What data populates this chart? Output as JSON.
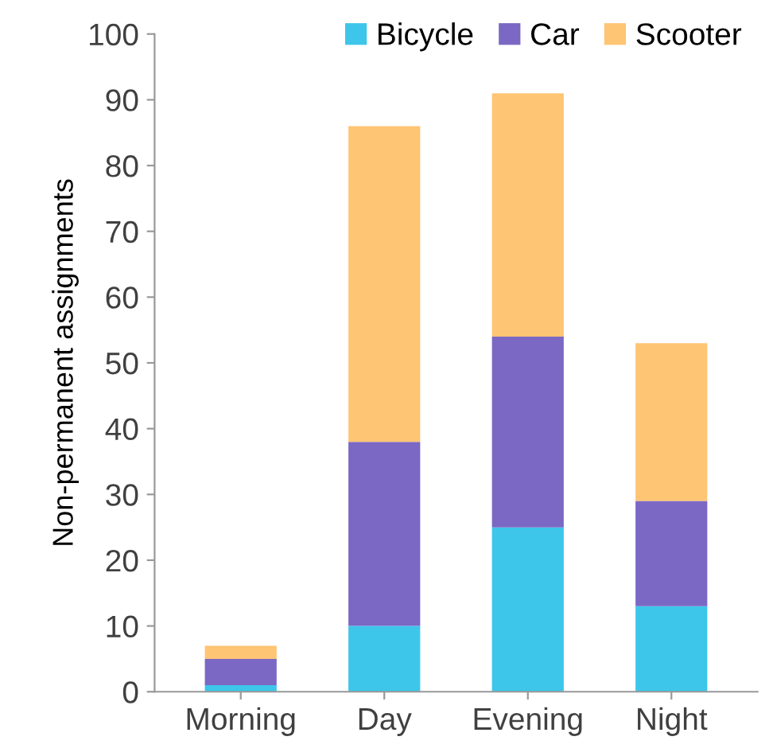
{
  "chart_data": {
    "type": "bar",
    "stacked": true,
    "ylabel": "Non-permanent assignments",
    "categories": [
      "Morning",
      "Day",
      "Evening",
      "Night"
    ],
    "series": [
      {
        "name": "Bicycle",
        "color": "#3dc6ea",
        "values": [
          1,
          10,
          25,
          13
        ]
      },
      {
        "name": "Car",
        "color": "#7b68c4",
        "values": [
          4,
          28,
          29,
          16
        ]
      },
      {
        "name": "Scooter",
        "color": "#fec574",
        "values": [
          2,
          48,
          37,
          24
        ]
      }
    ],
    "ylim": [
      0,
      100
    ],
    "yticks": [
      0,
      10,
      20,
      30,
      40,
      50,
      60,
      70,
      80,
      90,
      100
    ],
    "grid": false,
    "legend": "top right"
  }
}
